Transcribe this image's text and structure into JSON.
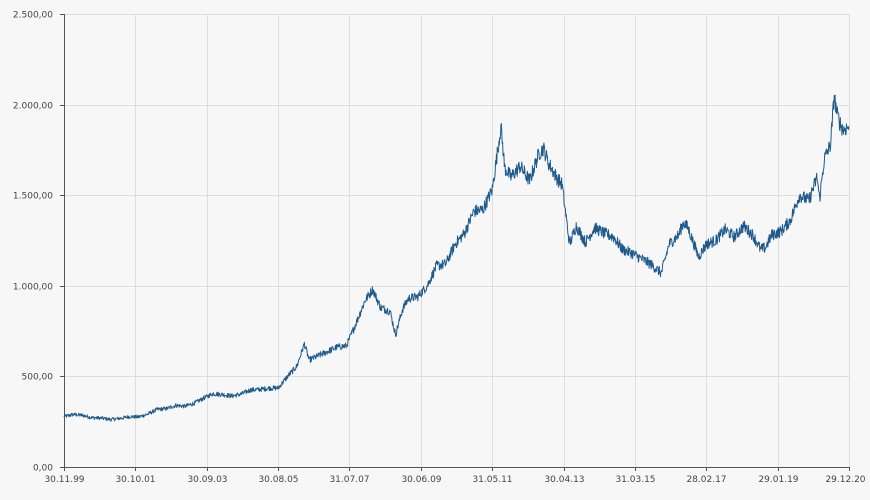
{
  "chart_data": {
    "type": "line",
    "title": "",
    "xlabel": "",
    "ylabel": "",
    "ylim": [
      0,
      2500
    ],
    "y_ticks": [
      "0,00",
      "500,00",
      "1.000,00",
      "1.500,00",
      "2.000,00",
      "2.500,00"
    ],
    "y_tick_values": [
      0,
      500,
      1000,
      1500,
      2000,
      2500
    ],
    "x_range": [
      "1999-11-30",
      "2020-12-29"
    ],
    "x_ticks": [
      "30.11.99",
      "30.10.01",
      "30.09.03",
      "30.08.05",
      "31.07.07",
      "30.06.09",
      "31.05.11",
      "30.04.13",
      "31.03.15",
      "28.02.17",
      "29.01.19",
      "29.12.20"
    ],
    "x_tick_dates": [
      "1999-11-30",
      "2001-10-30",
      "2003-09-30",
      "2005-08-30",
      "2007-07-31",
      "2009-06-30",
      "2011-05-31",
      "2013-04-30",
      "2015-03-31",
      "2017-02-28",
      "2019-01-29",
      "2020-12-29"
    ],
    "grid": true,
    "series": [
      {
        "name": "",
        "color": "#1f5a8c",
        "x": [
          "1999-11-30",
          "2000-03-01",
          "2000-06-01",
          "2000-09-01",
          "2000-12-01",
          "2001-03-01",
          "2001-06-01",
          "2001-09-01",
          "2001-12-01",
          "2002-03-01",
          "2002-06-01",
          "2002-09-01",
          "2002-12-01",
          "2003-03-01",
          "2003-06-01",
          "2003-09-01",
          "2003-12-01",
          "2004-03-01",
          "2004-06-01",
          "2004-09-01",
          "2004-12-01",
          "2005-03-01",
          "2005-06-01",
          "2005-09-01",
          "2005-12-01",
          "2006-03-01",
          "2006-05-15",
          "2006-07-01",
          "2006-10-01",
          "2007-01-01",
          "2007-04-01",
          "2007-07-01",
          "2007-10-01",
          "2008-01-01",
          "2008-03-15",
          "2008-06-01",
          "2008-09-01",
          "2008-10-25",
          "2009-01-01",
          "2009-03-01",
          "2009-06-01",
          "2009-09-01",
          "2009-12-01",
          "2010-03-01",
          "2010-06-01",
          "2010-09-01",
          "2010-12-01",
          "2011-03-01",
          "2011-06-01",
          "2011-08-25",
          "2011-10-01",
          "2011-12-01",
          "2012-03-01",
          "2012-06-01",
          "2012-09-01",
          "2012-10-15",
          "2012-12-01",
          "2013-03-01",
          "2013-04-15",
          "2013-06-28",
          "2013-09-01",
          "2013-12-01",
          "2014-03-01",
          "2014-06-01",
          "2014-09-01",
          "2014-12-01",
          "2015-03-01",
          "2015-06-01",
          "2015-09-01",
          "2015-12-15",
          "2016-03-01",
          "2016-06-01",
          "2016-07-20",
          "2016-09-01",
          "2016-12-15",
          "2017-03-01",
          "2017-06-01",
          "2017-09-01",
          "2017-12-01",
          "2018-03-01",
          "2018-06-01",
          "2018-08-15",
          "2018-10-01",
          "2018-12-01",
          "2019-03-01",
          "2019-06-01",
          "2019-09-01",
          "2019-12-01",
          "2020-02-20",
          "2020-03-15",
          "2020-05-01",
          "2020-07-01",
          "2020-08-06",
          "2020-09-01",
          "2020-10-01",
          "2020-11-01",
          "2020-12-29"
        ],
        "y": [
          278,
          290,
          285,
          272,
          270,
          262,
          268,
          278,
          276,
          292,
          318,
          322,
          340,
          335,
          352,
          380,
          405,
          400,
          392,
          402,
          425,
          428,
          435,
          436,
          500,
          555,
          680,
          590,
          615,
          638,
          662,
          668,
          790,
          920,
          980,
          880,
          860,
          730,
          870,
          930,
          940,
          1000,
          1110,
          1120,
          1230,
          1290,
          1410,
          1420,
          1530,
          1880,
          1650,
          1600,
          1660,
          1580,
          1730,
          1760,
          1680,
          1590,
          1560,
          1230,
          1330,
          1240,
          1320,
          1290,
          1270,
          1200,
          1180,
          1150,
          1120,
          1070,
          1230,
          1280,
          1350,
          1320,
          1160,
          1230,
          1250,
          1310,
          1270,
          1330,
          1280,
          1200,
          1210,
          1280,
          1300,
          1360,
          1500,
          1470,
          1600,
          1480,
          1700,
          1780,
          2050,
          1950,
          1900,
          1860,
          1880
        ]
      }
    ]
  }
}
